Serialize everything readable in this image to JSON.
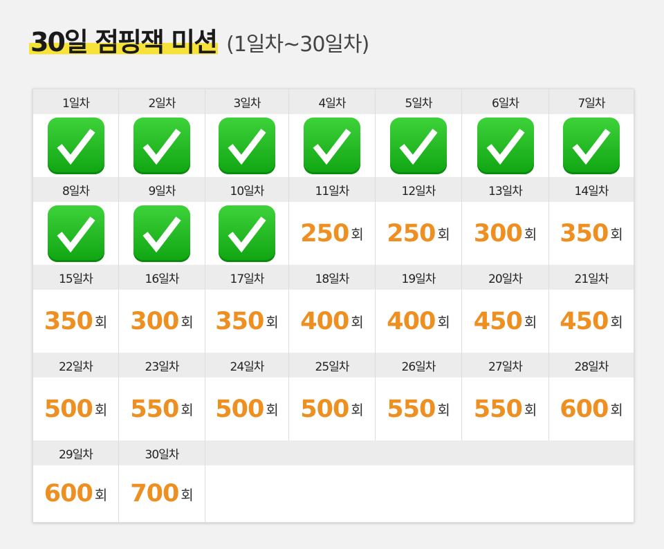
{
  "header": {
    "title": "30일 점핑잭 미션",
    "subtitle": "(1일차~30일차)"
  },
  "colors": {
    "accent": "#ee8f22",
    "highlight": "#f7e23a",
    "check": "#1dbb1e"
  },
  "unit": "회",
  "days": [
    {
      "label": "1일차",
      "done": true
    },
    {
      "label": "2일차",
      "done": true
    },
    {
      "label": "3일차",
      "done": true
    },
    {
      "label": "4일차",
      "done": true
    },
    {
      "label": "5일차",
      "done": true
    },
    {
      "label": "6일차",
      "done": true
    },
    {
      "label": "7일차",
      "done": true
    },
    {
      "label": "8일차",
      "done": true
    },
    {
      "label": "9일차",
      "done": true
    },
    {
      "label": "10일차",
      "done": true
    },
    {
      "label": "11일차",
      "value": "250"
    },
    {
      "label": "12일차",
      "value": "250"
    },
    {
      "label": "13일차",
      "value": "300"
    },
    {
      "label": "14일차",
      "value": "350"
    },
    {
      "label": "15일차",
      "value": "350"
    },
    {
      "label": "16일차",
      "value": "300"
    },
    {
      "label": "17일차",
      "value": "350"
    },
    {
      "label": "18일차",
      "value": "400"
    },
    {
      "label": "19일차",
      "value": "400"
    },
    {
      "label": "20일차",
      "value": "450"
    },
    {
      "label": "21일차",
      "value": "450"
    },
    {
      "label": "22일차",
      "value": "500"
    },
    {
      "label": "23일차",
      "value": "550"
    },
    {
      "label": "24일차",
      "value": "500"
    },
    {
      "label": "25일차",
      "value": "500"
    },
    {
      "label": "26일차",
      "value": "550"
    },
    {
      "label": "27일차",
      "value": "550"
    },
    {
      "label": "28일차",
      "value": "600"
    },
    {
      "label": "29일차",
      "value": "600"
    },
    {
      "label": "30일차",
      "value": "700"
    }
  ]
}
